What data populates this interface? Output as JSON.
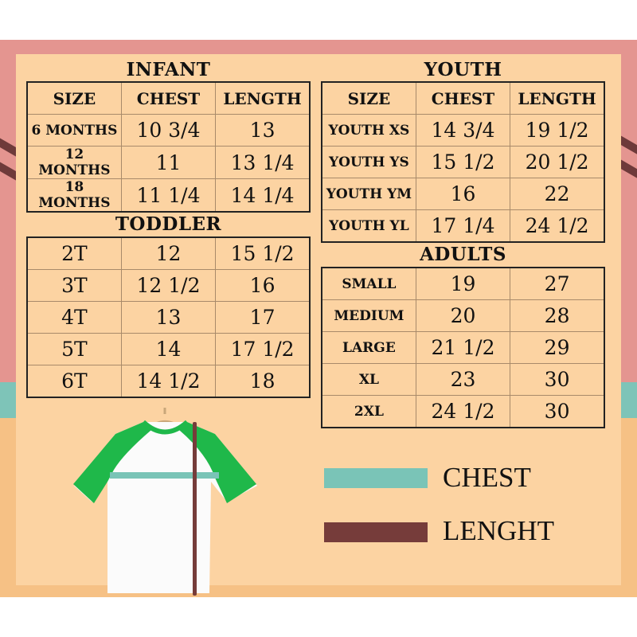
{
  "colors": {
    "chest": "#7ac4b7",
    "length": "#763c3a",
    "panel": "#fcd3a2",
    "pink": "#e49590"
  },
  "infant": {
    "title": "INFANT",
    "headers": [
      "SIZE",
      "CHEST",
      "LENGTH"
    ],
    "rows": [
      [
        "6 MONTHS",
        "10 3/4",
        "13"
      ],
      [
        "12 MONTHS",
        "11",
        "13 1/4"
      ],
      [
        "18 MONTHS",
        "11 1/4",
        "14 1/4"
      ]
    ]
  },
  "toddler": {
    "title": "TODDLER",
    "rows": [
      [
        "2T",
        "12",
        "15 1/2"
      ],
      [
        "3T",
        "12 1/2",
        "16"
      ],
      [
        "4T",
        "13",
        "17"
      ],
      [
        "5T",
        "14",
        "17 1/2"
      ],
      [
        "6T",
        "14 1/2",
        "18"
      ]
    ]
  },
  "youth": {
    "title": "YOUTH",
    "headers": [
      "SIZE",
      "CHEST",
      "LENGTH"
    ],
    "rows": [
      [
        "YOUTH XS",
        "14 3/4",
        "19 1/2"
      ],
      [
        "YOUTH YS",
        "15 1/2",
        "20 1/2"
      ],
      [
        "YOUTH YM",
        "16",
        "22"
      ],
      [
        "YOUTH YL",
        "17 1/4",
        "24 1/2"
      ]
    ]
  },
  "adults": {
    "title": "ADULTS",
    "rows": [
      [
        "SMALL",
        "19",
        "27"
      ],
      [
        "MEDIUM",
        "20",
        "28"
      ],
      [
        "LARGE",
        "21 1/2",
        "29"
      ],
      [
        "XL",
        "23",
        "30"
      ],
      [
        "2XL",
        "24 1/2",
        "30"
      ]
    ]
  },
  "legend": {
    "chest": "CHEST",
    "length": "LENGHT"
  }
}
